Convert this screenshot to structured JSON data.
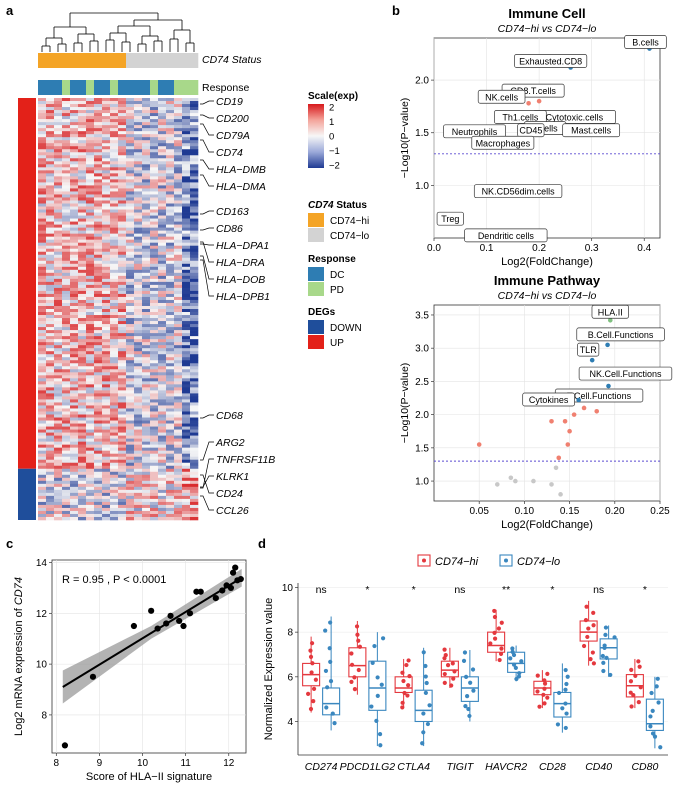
{
  "panels": {
    "a": "a",
    "b": "b",
    "c": "c",
    "d": "d"
  },
  "heatmap": {
    "status_label": "CD74 Status",
    "response_label": "Response",
    "status_colors": [
      "#F4A426",
      "#F4A426",
      "#F4A426",
      "#F4A426",
      "#F4A426",
      "#F4A426",
      "#F4A426",
      "#F4A426",
      "#F4A426",
      "#F4A426",
      "#F4A426",
      "#D3D3D3",
      "#D3D3D3",
      "#D3D3D3",
      "#D3D3D3",
      "#D3D3D3",
      "#D3D3D3",
      "#D3D3D3",
      "#D3D3D3",
      "#D3D3D3"
    ],
    "response_colors": [
      "#2E7DB3",
      "#2E7DB3",
      "#2E7DB3",
      "#A8D88A",
      "#2E7DB3",
      "#2E7DB3",
      "#A8D88A",
      "#2E7DB3",
      "#2E7DB3",
      "#A8D88A",
      "#2E7DB3",
      "#2E7DB3",
      "#2E7DB3",
      "#2E7DB3",
      "#A8D88A",
      "#2E7DB3",
      "#2E7DB3",
      "#A8D88A",
      "#A8D88A",
      "#A8D88A"
    ],
    "deg_up_fraction": 0.88,
    "gene_labels": [
      "CD19",
      "CD200",
      "CD79A",
      "CD74",
      "HLA−DMB",
      "HLA−DMA",
      "CD163",
      "CD86",
      "HLA−DPA1",
      "HLA−DRA",
      "HLA−DOB",
      "HLA−DPB1",
      "CD68",
      "ARG2",
      "TNFRSF11B",
      "KLRK1",
      "CD24",
      "CCL26"
    ],
    "legend": {
      "scale_title": "Scale(exp)",
      "scale_ticks": [
        "2",
        "1",
        "0",
        "−1",
        "−2"
      ],
      "status_title": "CD74 Status",
      "status_items": [
        {
          "label": "CD74−hi",
          "color": "#F4A426"
        },
        {
          "label": "CD74−lo",
          "color": "#D3D3D3"
        }
      ],
      "response_title": "Response",
      "response_items": [
        {
          "label": "DC",
          "color": "#2E7DB3"
        },
        {
          "label": "PD",
          "color": "#A8D88A"
        }
      ],
      "degs_title": "DEGs",
      "degs_items": [
        {
          "label": "DOWN",
          "color": "#1F4E9B"
        },
        {
          "label": "UP",
          "color": "#E32119"
        }
      ]
    }
  },
  "chart_data": [
    {
      "id": "immune_cell",
      "type": "scatter",
      "title": "Immune Cell",
      "subtitle": "CD74−hi vs CD74−lo",
      "xlabel": "Log2(FoldChange)",
      "ylabel": "−Log10(P−value)",
      "xlim": [
        0.0,
        0.43
      ],
      "ylim": [
        0.5,
        2.4
      ],
      "xticks": [
        "0.0",
        "0.1",
        "0.2",
        "0.3",
        "0.4"
      ],
      "yticks": [
        "1.0",
        "1.5",
        "2.0"
      ],
      "threshold": 1.3,
      "points": [
        {
          "label": "Exhausted.CD8",
          "x": 0.26,
          "y": 2.12,
          "color": "#2E7DB3"
        },
        {
          "label": "B.cells",
          "x": 0.41,
          "y": 2.3,
          "color": "#2E7DB3"
        },
        {
          "label": "CD8.T.cells",
          "x": 0.2,
          "y": 1.8,
          "color": "#F08070"
        },
        {
          "label": "NK.cells",
          "x": 0.18,
          "y": 1.78,
          "color": "#F08070"
        },
        {
          "label": "Cytotoxic.cells",
          "x": 0.21,
          "y": 1.55,
          "color": "#F08070"
        },
        {
          "label": "Th1.cells",
          "x": 0.17,
          "y": 1.55,
          "color": "#F08070"
        },
        {
          "label": "T.cells",
          "x": 0.2,
          "y": 1.52,
          "color": "#F08070"
        },
        {
          "label": "Mast.cells",
          "x": 0.28,
          "y": 1.5,
          "color": "#F08070"
        },
        {
          "label": "CD45",
          "x": 0.19,
          "y": 1.5,
          "color": "#F08070"
        },
        {
          "label": "Neutrophils",
          "x": 0.1,
          "y": 1.49,
          "color": "#F08070"
        },
        {
          "label": "Macrophages",
          "x": 0.15,
          "y": 1.4,
          "color": "#F08070"
        },
        {
          "label": "NK.CD56dim.cells",
          "x": 0.16,
          "y": 0.94,
          "color": "#C8C8C8"
        },
        {
          "label": "Treg",
          "x": 0.05,
          "y": 0.65,
          "color": "#C8C8C8"
        },
        {
          "label": "Dendritic cells",
          "x": 0.15,
          "y": 0.52,
          "color": "#C8C8C8"
        }
      ]
    },
    {
      "id": "immune_pathway",
      "type": "scatter",
      "title": "Immune Pathway",
      "subtitle": "CD74−hi vs CD74−lo",
      "xlabel": "Log2(FoldChange)",
      "ylabel": "−Log10(P−value)",
      "xlim": [
        0.0,
        0.25
      ],
      "ylim": [
        0.7,
        3.65
      ],
      "xticks": [
        "0.05",
        "0.10",
        "0.15",
        "0.20",
        "0.25"
      ],
      "yticks": [
        "1.0",
        "1.5",
        "2.0",
        "2.5",
        "3.0",
        "3.5"
      ],
      "threshold": 1.3,
      "points": [
        {
          "label": "HLA.II",
          "x": 0.195,
          "y": 3.42,
          "color": "#80C080"
        },
        {
          "label": "B.Cell.Functions",
          "x": 0.192,
          "y": 3.05,
          "color": "#2E7DB3"
        },
        {
          "label": "TLR",
          "x": 0.175,
          "y": 2.82,
          "color": "#2E7DB3"
        },
        {
          "label": "NK.Cell.Functions",
          "x": 0.193,
          "y": 2.43,
          "color": "#2E7DB3"
        },
        {
          "label": "T.Cell.Functions",
          "x": 0.166,
          "y": 2.1,
          "color": "#F08070"
        },
        {
          "label": "Cytokines",
          "x": 0.16,
          "y": 2.22,
          "color": "#2E7DB3"
        },
        {
          "label": "",
          "x": 0.18,
          "y": 2.05,
          "color": "#F08070"
        },
        {
          "label": "",
          "x": 0.155,
          "y": 2.0,
          "color": "#F08070"
        },
        {
          "label": "",
          "x": 0.13,
          "y": 1.9,
          "color": "#F08070"
        },
        {
          "label": "",
          "x": 0.145,
          "y": 1.9,
          "color": "#F08070"
        },
        {
          "label": "",
          "x": 0.15,
          "y": 1.75,
          "color": "#F08070"
        },
        {
          "label": "",
          "x": 0.148,
          "y": 1.55,
          "color": "#F08070"
        },
        {
          "label": "",
          "x": 0.138,
          "y": 1.35,
          "color": "#F08070"
        },
        {
          "label": "",
          "x": 0.05,
          "y": 1.55,
          "color": "#F08070"
        },
        {
          "label": "",
          "x": 0.135,
          "y": 1.2,
          "color": "#C8C8C8"
        },
        {
          "label": "",
          "x": 0.11,
          "y": 1.0,
          "color": "#C8C8C8"
        },
        {
          "label": "",
          "x": 0.085,
          "y": 1.05,
          "color": "#C8C8C8"
        },
        {
          "label": "",
          "x": 0.09,
          "y": 1.0,
          "color": "#C8C8C8"
        },
        {
          "label": "",
          "x": 0.13,
          "y": 0.95,
          "color": "#C8C8C8"
        },
        {
          "label": "",
          "x": 0.14,
          "y": 0.8,
          "color": "#C8C8C8"
        },
        {
          "label": "",
          "x": 0.07,
          "y": 0.95,
          "color": "#C8C8C8"
        }
      ]
    },
    {
      "id": "correlation",
      "type": "scatter",
      "xlabel": "Score of HLA−II signature",
      "ylabel_prefix": "Log2 mRNA expression of ",
      "ylabel_gene": "CD74",
      "annotation": "R = 0.95 , P < 0.0001",
      "xlim": [
        7.9,
        12.4
      ],
      "ylim": [
        6.5,
        14.1
      ],
      "xticks": [
        "8",
        "9",
        "10",
        "11",
        "12"
      ],
      "yticks": [
        "8",
        "10",
        "12",
        "14"
      ],
      "fit": {
        "x0": 8.15,
        "y0": 9.1,
        "x1": 12.3,
        "y1": 13.4
      },
      "points": [
        {
          "x": 8.2,
          "y": 6.8
        },
        {
          "x": 8.85,
          "y": 9.5
        },
        {
          "x": 9.8,
          "y": 11.5
        },
        {
          "x": 10.2,
          "y": 12.1
        },
        {
          "x": 10.35,
          "y": 11.4
        },
        {
          "x": 10.55,
          "y": 11.6
        },
        {
          "x": 10.65,
          "y": 11.9
        },
        {
          "x": 10.85,
          "y": 11.7
        },
        {
          "x": 10.95,
          "y": 11.5
        },
        {
          "x": 11.1,
          "y": 12.0
        },
        {
          "x": 11.25,
          "y": 12.85
        },
        {
          "x": 11.35,
          "y": 12.85
        },
        {
          "x": 11.7,
          "y": 12.6
        },
        {
          "x": 11.85,
          "y": 12.9
        },
        {
          "x": 11.95,
          "y": 13.1
        },
        {
          "x": 12.05,
          "y": 13.0
        },
        {
          "x": 12.1,
          "y": 13.6
        },
        {
          "x": 12.15,
          "y": 13.8
        },
        {
          "x": 12.2,
          "y": 13.3
        },
        {
          "x": 12.28,
          "y": 13.35
        }
      ]
    },
    {
      "id": "boxplot",
      "type": "box",
      "ylabel": "Normalized Expression value",
      "ylim": [
        2.5,
        10.2
      ],
      "yticks": [
        "4",
        "6",
        "8",
        "10"
      ],
      "legend": [
        {
          "label": "CD74−hi",
          "color": "#E4383E"
        },
        {
          "label": "CD74−lo",
          "color": "#3A87BF"
        }
      ],
      "categories": [
        "CD274",
        "PDCD1LG2",
        "CTLA4",
        "TIGIT",
        "HAVCR2",
        "CD28",
        "CD40",
        "CD80"
      ],
      "significance": [
        "ns",
        "*",
        "*",
        "ns",
        "**",
        "*",
        "ns",
        "*"
      ],
      "series": [
        {
          "name": "CD74−hi",
          "stats": [
            [
              4.4,
              5.6,
              6.1,
              6.6,
              7.8
            ],
            [
              5.2,
              6.0,
              6.5,
              7.3,
              8.5
            ],
            [
              4.6,
              5.3,
              5.5,
              6.0,
              6.8
            ],
            [
              5.5,
              6.0,
              6.3,
              6.7,
              7.3
            ],
            [
              6.7,
              7.1,
              7.4,
              8.0,
              9.0
            ],
            [
              4.6,
              5.2,
              5.5,
              5.8,
              6.3
            ],
            [
              6.5,
              7.6,
              8.0,
              8.5,
              9.4
            ],
            [
              4.6,
              5.1,
              5.6,
              6.1,
              6.8
            ]
          ]
        },
        {
          "name": "CD74−lo",
          "stats": [
            [
              3.6,
              4.3,
              4.8,
              5.5,
              8.7
            ],
            [
              2.9,
              4.5,
              5.5,
              6.7,
              8.0
            ],
            [
              2.9,
              4.0,
              4.5,
              5.4,
              7.3
            ],
            [
              4.0,
              4.9,
              5.5,
              6.0,
              7.2
            ],
            [
              5.8,
              6.2,
              6.6,
              7.1,
              7.4
            ],
            [
              3.5,
              4.2,
              4.8,
              5.3,
              6.6
            ],
            [
              6.0,
              6.8,
              7.3,
              7.7,
              8.3
            ],
            [
              2.8,
              3.6,
              3.9,
              5.0,
              6.0
            ]
          ]
        }
      ]
    }
  ]
}
